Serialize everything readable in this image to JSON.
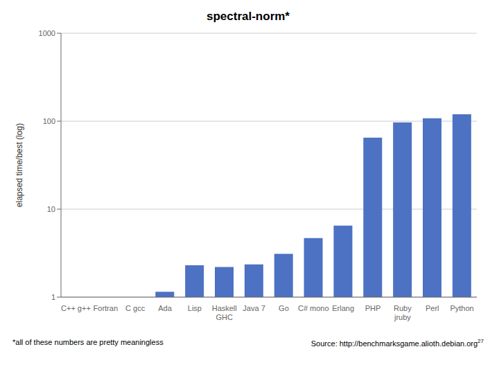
{
  "chart_data": {
    "type": "bar",
    "title": "spectral-norm*",
    "ylabel": "elapsed time/best (log)",
    "categories": [
      "C++ g++",
      "Fortran",
      "C gcc",
      "Ada",
      "Lisp",
      "Haskell\nGHC",
      "Java 7",
      "Go",
      "C# mono",
      "Erlang",
      "PHP",
      "Ruby\njruby",
      "Perl",
      "Python"
    ],
    "values": [
      1.0,
      1.0,
      1.0,
      1.15,
      2.3,
      2.2,
      2.35,
      3.1,
      4.7,
      6.5,
      65.0,
      97.0,
      108.0,
      120.0
    ],
    "color": "#4d72c4",
    "log": "y",
    "ylim": [
      1,
      1000
    ],
    "yticks": [
      1,
      10,
      100,
      1000
    ],
    "grid": true,
    "annotations": [
      "*all of these numbers are pretty meaningless",
      "Source: http://benchmarksgame.alioth.debian.org",
      "27"
    ]
  }
}
